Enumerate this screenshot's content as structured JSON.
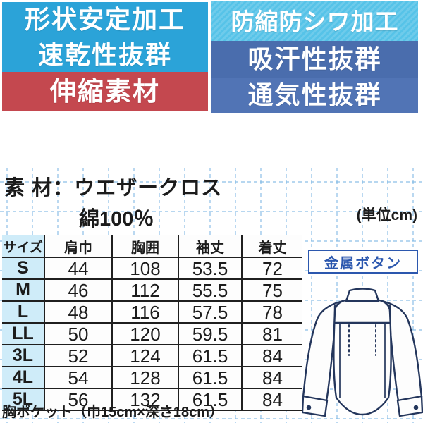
{
  "features": {
    "left": [
      {
        "label": "形状安定加工"
      },
      {
        "label": "速乾性抜群"
      },
      {
        "label": "伸縮素材"
      }
    ],
    "right": [
      {
        "label": "防縮防シワ加工"
      },
      {
        "label": "吸汗性抜群"
      },
      {
        "label": "通気性抜群"
      }
    ]
  },
  "material": {
    "label": "素 材：",
    "value": "ウエザークロス",
    "composition": "綿100％"
  },
  "unit_note": "(単位cm)",
  "size_table": {
    "headers": [
      "サイズ",
      "肩巾",
      "胸囲",
      "袖丈",
      "着丈"
    ],
    "rows": [
      {
        "size": "S",
        "values": [
          "44",
          "108",
          "53.5",
          "72"
        ]
      },
      {
        "size": "M",
        "values": [
          "46",
          "112",
          "55.5",
          "75"
        ]
      },
      {
        "size": "L",
        "values": [
          "48",
          "116",
          "57.5",
          "78"
        ]
      },
      {
        "size": "LL",
        "values": [
          "50",
          "120",
          "59.5",
          "81"
        ]
      },
      {
        "size": "3L",
        "values": [
          "52",
          "124",
          "61.5",
          "84"
        ]
      },
      {
        "size": "4L",
        "values": [
          "54",
          "128",
          "61.5",
          "84"
        ]
      },
      {
        "size": "5L",
        "values": [
          "56",
          "132",
          "61.5",
          "84"
        ]
      }
    ]
  },
  "button_label": "金属ボタン",
  "pocket_note": "胸ポケット（巾15cm×深さ18cm）",
  "illustration": {
    "name": "shirt-back-view"
  },
  "colors": {
    "banner_blue": "#2ba3d8",
    "banner_red": "#c4484f",
    "banner_cyan": "#56c3e8",
    "banner_slate_top": "#4a6dad",
    "banner_slate_bottom": "#5174b5",
    "feature_text": "#ffffff",
    "size_column_bg": "#cfecf9",
    "grid_line": "#79b5e3",
    "table_line": "#1f1f1f",
    "metal_button_accent": "#2b57ae",
    "shirt_outline": "#24365c"
  }
}
